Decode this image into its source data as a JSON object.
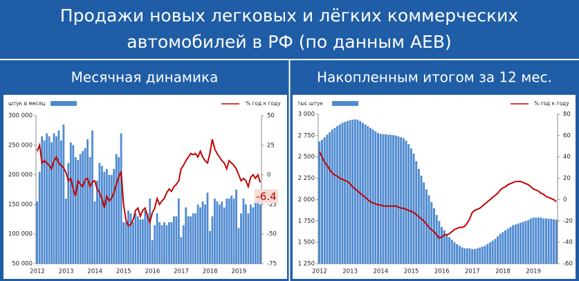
{
  "header": {
    "title": [
      "Продажи новых легковых и лёгких коммерческих",
      "автомобилей в РФ (по данным АЕВ)"
    ]
  },
  "chart_data": [
    {
      "type": "bar-line",
      "title": "Месячная динамика",
      "annotation": "-6.4",
      "categories": [
        "2012",
        null,
        null,
        null,
        null,
        null,
        null,
        null,
        null,
        null,
        null,
        null,
        "2013",
        null,
        null,
        null,
        null,
        null,
        null,
        null,
        null,
        null,
        null,
        null,
        "2014",
        null,
        null,
        null,
        null,
        null,
        null,
        null,
        null,
        null,
        null,
        null,
        "2015",
        null,
        null,
        null,
        null,
        null,
        null,
        null,
        null,
        null,
        null,
        null,
        "2016",
        null,
        null,
        null,
        null,
        null,
        null,
        null,
        null,
        null,
        null,
        null,
        "2017",
        null,
        null,
        null,
        null,
        null,
        null,
        null,
        null,
        null,
        null,
        null,
        "2018",
        null,
        null,
        null,
        null,
        null,
        null,
        null,
        null,
        null,
        null,
        null,
        "2019",
        null,
        null,
        null,
        null,
        null,
        null,
        null,
        null,
        null
      ],
      "series": [
        {
          "name": "штук в месяц",
          "color": "#4f8ad0",
          "axis": "y",
          "values": [
            155000,
            205000,
            265000,
            258000,
            270000,
            265000,
            255000,
            270000,
            265000,
            275000,
            258000,
            285000,
            160000,
            220000,
            255000,
            250000,
            230000,
            225000,
            235000,
            240000,
            245000,
            260000,
            230000,
            275000,
            155000,
            190000,
            220000,
            215000,
            205000,
            210000,
            200000,
            200000,
            210000,
            235000,
            230000,
            270000,
            120000,
            120000,
            140000,
            135000,
            120000,
            135000,
            130000,
            125000,
            125000,
            140000,
            135000,
            160000,
            90000,
            115000,
            135000,
            120000,
            115000,
            120000,
            115000,
            120000,
            120000,
            130000,
            130000,
            160000,
            95000,
            115000,
            145000,
            130000,
            130000,
            135000,
            135000,
            150000,
            145000,
            155000,
            150000,
            170000,
            105000,
            130000,
            160000,
            155000,
            150000,
            155000,
            145000,
            160000,
            160000,
            165000,
            160000,
            175000,
            110000,
            135000,
            160000,
            150000,
            135000,
            150000,
            145000,
            160000,
            155000,
            150000
          ]
        },
        {
          "name": "% год к году",
          "color": "#c00000",
          "axis": "y2",
          "values": [
            20,
            25,
            10,
            12,
            10,
            8,
            5,
            12,
            15,
            10,
            8,
            6,
            2,
            -5,
            -3,
            -12,
            -18,
            -5,
            -8,
            -10,
            -4,
            -3,
            -10,
            -6,
            -5,
            -12,
            -15,
            -20,
            -28,
            -18,
            -22,
            -20,
            -15,
            -8,
            -2,
            3,
            -25,
            -38,
            -43,
            -42,
            -38,
            -30,
            -28,
            -35,
            -30,
            -28,
            -35,
            -40,
            -32,
            -28,
            -20,
            -25,
            -22,
            -20,
            -15,
            -12,
            -14,
            -10,
            -8,
            -5,
            5,
            8,
            12,
            15,
            18,
            17,
            18,
            15,
            20,
            15,
            12,
            10,
            18,
            30,
            22,
            18,
            15,
            12,
            10,
            5,
            12,
            10,
            8,
            5,
            0,
            -5,
            -3,
            -5,
            -10,
            -2,
            0,
            -3,
            0,
            -6.4
          ]
        }
      ],
      "ylim": [
        50000,
        300000
      ],
      "yticks": [
        {
          "value": 50000,
          "label": "50 000"
        },
        {
          "value": 100000,
          "label": "100 000"
        },
        {
          "value": 150000,
          "label": "150 000"
        },
        {
          "value": 200000,
          "label": "200 000"
        },
        {
          "value": 250000,
          "label": "250 000"
        },
        {
          "value": 300000,
          "label": "300 000"
        }
      ],
      "y2lim": [
        -75,
        50
      ],
      "y2ticks": [
        -75,
        -50,
        -25,
        0,
        25,
        50
      ]
    },
    {
      "type": "bar-line",
      "title": "Накопленным итогом за 12 мес.",
      "categories": [
        "2012",
        null,
        null,
        null,
        null,
        null,
        null,
        null,
        null,
        null,
        null,
        null,
        "2013",
        null,
        null,
        null,
        null,
        null,
        null,
        null,
        null,
        null,
        null,
        null,
        "2014",
        null,
        null,
        null,
        null,
        null,
        null,
        null,
        null,
        null,
        null,
        null,
        "2015",
        null,
        null,
        null,
        null,
        null,
        null,
        null,
        null,
        null,
        null,
        null,
        "2016",
        null,
        null,
        null,
        null,
        null,
        null,
        null,
        null,
        null,
        null,
        null,
        "2017",
        null,
        null,
        null,
        null,
        null,
        null,
        null,
        null,
        null,
        null,
        null,
        "2018",
        null,
        null,
        null,
        null,
        null,
        null,
        null,
        null,
        null,
        null,
        null,
        "2019",
        null,
        null,
        null,
        null,
        null,
        null,
        null,
        null,
        null
      ],
      "series": [
        {
          "name": "тыс штук",
          "color": "#4f8ad0",
          "axis": "y",
          "values": [
            2680,
            2700,
            2730,
            2760,
            2790,
            2820,
            2840,
            2860,
            2880,
            2900,
            2910,
            2920,
            2930,
            2935,
            2940,
            2935,
            2920,
            2900,
            2880,
            2860,
            2840,
            2820,
            2800,
            2780,
            2770,
            2765,
            2765,
            2760,
            2760,
            2755,
            2750,
            2740,
            2730,
            2720,
            2690,
            2650,
            2600,
            2540,
            2450,
            2360,
            2280,
            2200,
            2120,
            2050,
            1970,
            1900,
            1820,
            1750,
            1680,
            1640,
            1600,
            1560,
            1530,
            1500,
            1480,
            1460,
            1440,
            1430,
            1430,
            1430,
            1420,
            1420,
            1430,
            1440,
            1450,
            1460,
            1480,
            1500,
            1520,
            1540,
            1570,
            1600,
            1620,
            1640,
            1660,
            1680,
            1700,
            1710,
            1720,
            1730,
            1740,
            1750,
            1760,
            1780,
            1790,
            1790,
            1790,
            1790,
            1780,
            1780,
            1775,
            1775,
            1770,
            1765
          ]
        },
        {
          "name": "% год к году",
          "color": "#c00000",
          "axis": "y2",
          "values": [
            45,
            40,
            35,
            32,
            28,
            25,
            23,
            22,
            20,
            19,
            18,
            17,
            15,
            12,
            10,
            8,
            6,
            4,
            2,
            0,
            -2,
            -3,
            -4,
            -5,
            -5,
            -6,
            -6,
            -6,
            -6,
            -6,
            -6,
            -7,
            -8,
            -8,
            -9,
            -10,
            -11,
            -12,
            -14,
            -16,
            -18,
            -20,
            -23,
            -26,
            -28,
            -30,
            -33,
            -36,
            -35,
            -33,
            -33,
            -32,
            -30,
            -28,
            -27,
            -26,
            -26,
            -25,
            -22,
            -18,
            -12,
            -10,
            -9,
            -8,
            -6,
            -4,
            -2,
            0,
            2,
            4,
            6,
            9,
            11,
            12,
            14,
            15,
            16,
            17,
            17,
            17,
            16,
            15,
            14,
            12,
            10,
            9,
            8,
            6,
            5,
            3,
            2,
            1,
            0,
            -2
          ]
        }
      ],
      "ylim": [
        1250,
        3000
      ],
      "yticks": [
        {
          "value": 1250,
          "label": "1 250"
        },
        {
          "value": 1500,
          "label": "1 500"
        },
        {
          "value": 1750,
          "label": "1 750"
        },
        {
          "value": 2000,
          "label": "2 000"
        },
        {
          "value": 2250,
          "label": "2 250"
        },
        {
          "value": 2500,
          "label": "2 500"
        },
        {
          "value": 2750,
          "label": "2 750"
        },
        {
          "value": 3000,
          "label": "3 000"
        }
      ],
      "y2lim": [
        -60,
        80
      ],
      "y2ticks": [
        -60,
        -40,
        -20,
        0,
        20,
        40,
        60,
        80
      ]
    }
  ]
}
